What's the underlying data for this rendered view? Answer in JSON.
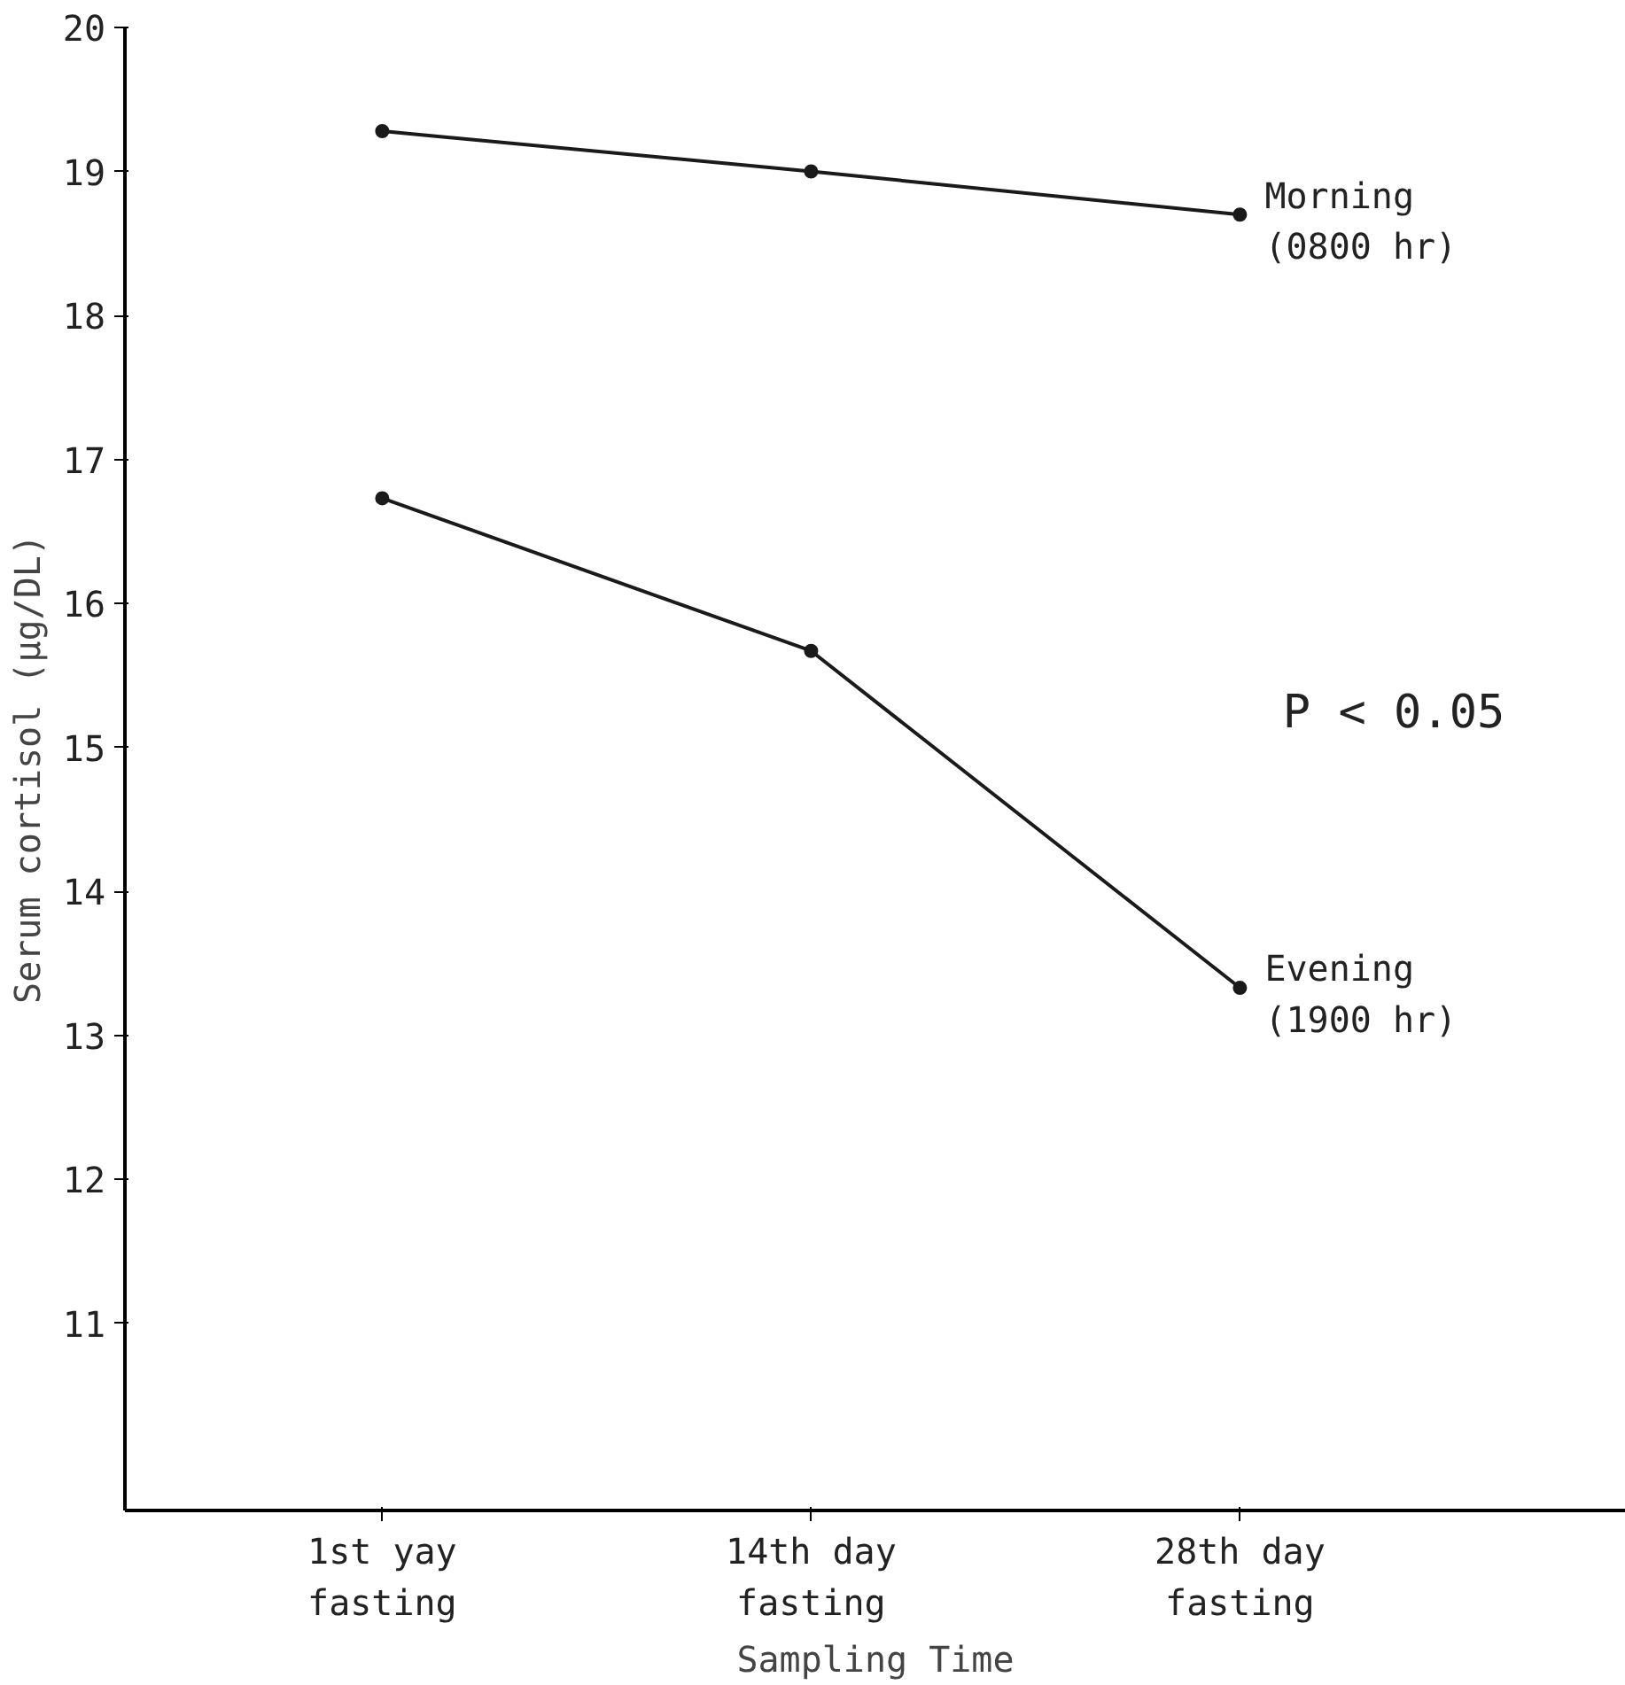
{
  "chart_data": {
    "type": "line",
    "xlabel": "Sampling Time",
    "ylabel": "Serum cortisol (μg/DL)",
    "categories": [
      "1st yay\nfasting",
      "14th day\nfasting",
      "28th day\nfasting"
    ],
    "series": [
      {
        "name": "Morning\n(0800 hr)",
        "color": "#1a1a1a",
        "values": [
          19.28,
          19.0,
          18.7
        ]
      },
      {
        "name": "Evening\n(1900 hr)",
        "color": "#1a1a1a",
        "values": [
          16.73,
          15.67,
          13.33
        ]
      }
    ],
    "ylim": [
      9.7,
      20
    ],
    "yticks": [
      11,
      12,
      13,
      14,
      15,
      16,
      17,
      18,
      19,
      20
    ],
    "annotations": [
      "P < 0.05"
    ],
    "marker": "circle",
    "line_style": "solid",
    "grid": false
  }
}
